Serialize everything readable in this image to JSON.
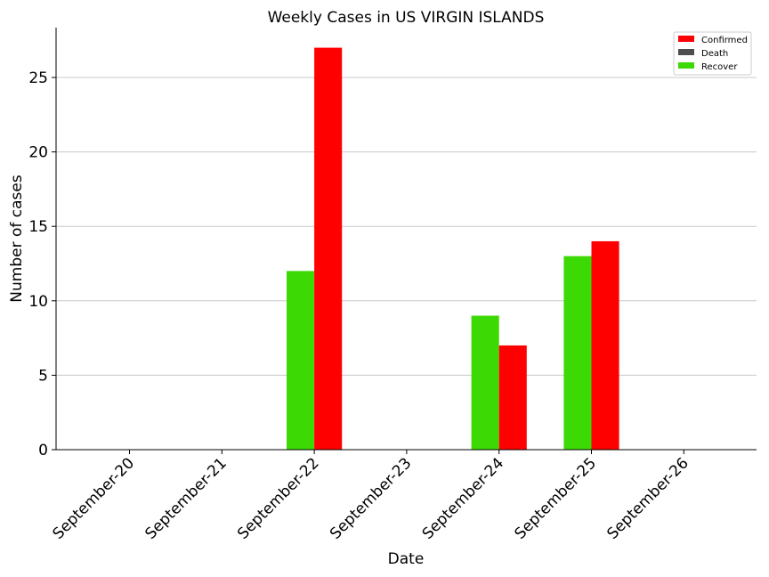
{
  "chart_data": {
    "type": "bar",
    "title": "Weekly Cases in US VIRGIN ISLANDS",
    "xlabel": "Date",
    "ylabel": "Number of cases",
    "categories": [
      "September-20",
      "September-21",
      "September-22",
      "September-23",
      "September-24",
      "September-25",
      "September-26"
    ],
    "series": [
      {
        "name": "Recover",
        "color": "#3cd905",
        "values": [
          0,
          0,
          12,
          0,
          9,
          13,
          0
        ]
      },
      {
        "name": "Confirmed",
        "color": "#ff0000",
        "values": [
          0,
          0,
          27,
          0,
          7,
          14,
          0
        ]
      }
    ],
    "legend": {
      "position": "top-right",
      "entries": [
        {
          "name": "Confirmed",
          "color": "#ff0000"
        },
        {
          "name": "Death",
          "color": "#4d4d4d"
        },
        {
          "name": "Recover",
          "color": "#3cd905"
        }
      ]
    },
    "ylim": [
      0,
      28.35
    ],
    "yticks": [
      0,
      5,
      10,
      15,
      20,
      25
    ],
    "grid": "horizontal"
  }
}
